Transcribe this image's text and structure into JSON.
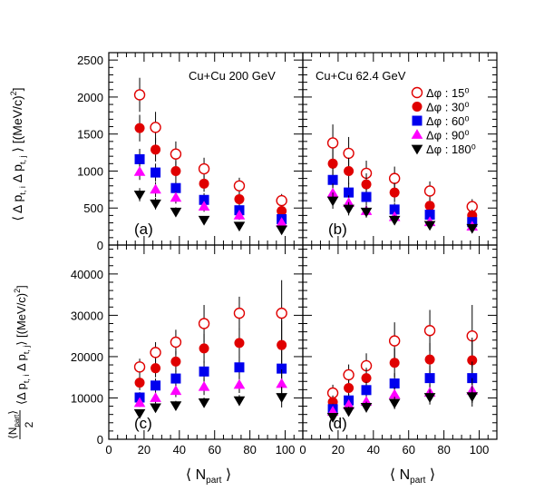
{
  "figure": {
    "ylabel_top": "⟨ Δ p_{t,i} Δ p_{t,j} ⟩ [(MeV/c)^{2}]",
    "ylabel_bottom": "⟨N_{part}⟩/2 ⟨Δ p_{t,i} Δ p_{t,j}⟩ [(MeV/c)^{2}]",
    "xlabel": "⟨ N_{part} ⟩"
  },
  "legend": {
    "placement": "panel (b), top-right",
    "entries": [
      {
        "label": "Δφ : 15⁰",
        "marker": "open-circle",
        "color": "#e00000"
      },
      {
        "label": "Δφ : 30⁰",
        "marker": "filled-circle",
        "color": "#e00000"
      },
      {
        "label": "Δφ : 60⁰",
        "marker": "square",
        "color": "#0000ee"
      },
      {
        "label": "Δφ : 90⁰",
        "marker": "triangle-up",
        "color": "#ff00ff"
      },
      {
        "label": "Δφ : 180⁰",
        "marker": "triangle-down",
        "color": "#000000"
      }
    ]
  },
  "chart_data": [
    {
      "type": "scatter",
      "panel": "(a)",
      "annotation": "Cu+Cu 200 GeV",
      "xlim": [
        0,
        110
      ],
      "ylim": [
        0,
        2600
      ],
      "xticks": [],
      "yticks": [
        0,
        500,
        1000,
        1500,
        2000,
        2500
      ],
      "ylabel": "⟨ Δ p_{t,i} Δ p_{t,j} ⟩ [(MeV/c)^{2}]",
      "grid": false,
      "series": [
        {
          "name": "Δφ : 15⁰",
          "x": [
            17.5,
            26.5,
            38,
            54,
            74,
            98
          ],
          "y": [
            2030,
            1590,
            1230,
            1030,
            800,
            600
          ],
          "err": [
            230,
            210,
            170,
            150,
            110,
            90
          ]
        },
        {
          "name": "Δφ : 30⁰",
          "x": [
            17.5,
            26.5,
            38,
            54,
            74,
            98
          ],
          "y": [
            1580,
            1290,
            1000,
            830,
            620,
            460
          ],
          "err": [
            180,
            160,
            130,
            110,
            90,
            70
          ]
        },
        {
          "name": "Δφ : 60⁰",
          "x": [
            17.5,
            26.5,
            38,
            54,
            74,
            98
          ],
          "y": [
            1160,
            980,
            770,
            610,
            470,
            350
          ],
          "err": [
            140,
            120,
            100,
            90,
            70,
            50
          ]
        },
        {
          "name": "Δφ : 90⁰",
          "x": [
            17.5,
            26.5,
            38,
            54,
            74,
            98
          ],
          "y": [
            990,
            750,
            640,
            520,
            400,
            300
          ],
          "err": [
            110,
            100,
            80,
            70,
            60,
            50
          ]
        },
        {
          "name": "Δφ : 180⁰",
          "x": [
            17.5,
            26.5,
            38,
            54,
            74,
            98
          ],
          "y": [
            680,
            560,
            450,
            340,
            260,
            210
          ],
          "err": [
            90,
            80,
            60,
            50,
            40,
            40
          ]
        }
      ]
    },
    {
      "type": "scatter",
      "panel": "(b)",
      "annotation": "Cu+Cu 62.4 GeV",
      "xlim": [
        0,
        110
      ],
      "ylim": [
        0,
        2600
      ],
      "xticks": [],
      "yticks": [],
      "grid": false,
      "series": [
        {
          "name": "Δφ : 15⁰",
          "x": [
            17,
            26,
            36,
            52,
            72,
            96
          ],
          "y": [
            1380,
            1240,
            970,
            900,
            730,
            520
          ],
          "err": [
            250,
            220,
            170,
            160,
            130,
            100
          ]
        },
        {
          "name": "Δφ : 30⁰",
          "x": [
            17,
            26,
            36,
            52,
            72,
            96
          ],
          "y": [
            1100,
            1000,
            820,
            710,
            530,
            400
          ],
          "err": [
            200,
            180,
            150,
            130,
            100,
            80
          ]
        },
        {
          "name": "Δφ : 60⁰",
          "x": [
            17,
            26,
            36,
            52,
            72,
            96
          ],
          "y": [
            880,
            710,
            650,
            480,
            410,
            310
          ],
          "err": [
            160,
            130,
            110,
            90,
            70,
            60
          ]
        },
        {
          "name": "Δφ : 90⁰",
          "x": [
            17,
            26,
            36,
            52,
            72,
            96
          ],
          "y": [
            700,
            570,
            460,
            380,
            310,
            250
          ],
          "err": [
            130,
            100,
            80,
            70,
            60,
            50
          ]
        },
        {
          "name": "Δφ : 180⁰",
          "x": [
            17,
            26,
            36,
            52,
            72,
            96
          ],
          "y": [
            600,
            490,
            450,
            340,
            270,
            230
          ],
          "err": [
            110,
            90,
            80,
            60,
            50,
            40
          ]
        }
      ]
    },
    {
      "type": "scatter",
      "panel": "(c)",
      "xlim": [
        0,
        110
      ],
      "ylim": [
        0,
        47000
      ],
      "xticks": [
        0,
        20,
        40,
        60,
        80,
        100
      ],
      "yticks": [
        0,
        10000,
        20000,
        30000,
        40000
      ],
      "xlabel": "⟨ N_{part} ⟩",
      "ylabel": "⟨N_{part}⟩/2 ⟨Δ p_{t,i} Δ p_{t,j}⟩ [(MeV/c)^{2}]",
      "grid": false,
      "series": [
        {
          "name": "Δφ : 15⁰",
          "x": [
            17.5,
            26.5,
            38,
            54,
            74,
            98
          ],
          "y": [
            17500,
            21000,
            23500,
            28000,
            30500,
            30500
          ],
          "err": [
            2000,
            2500,
            3000,
            4500,
            4000,
            8000
          ]
        },
        {
          "name": "Δφ : 30⁰",
          "x": [
            17.5,
            26.5,
            38,
            54,
            74,
            98
          ],
          "y": [
            13700,
            17200,
            18800,
            22000,
            23300,
            22800
          ],
          "err": [
            1800,
            2200,
            2500,
            3500,
            3500,
            6000
          ]
        },
        {
          "name": "Δφ : 60⁰",
          "x": [
            17.5,
            26.5,
            38,
            54,
            74,
            98
          ],
          "y": [
            10100,
            13000,
            14700,
            16400,
            17400,
            17100
          ],
          "err": [
            1300,
            1700,
            2000,
            2500,
            2500,
            4500
          ]
        },
        {
          "name": "Δφ : 90⁰",
          "x": [
            17.5,
            26.5,
            38,
            54,
            74,
            98
          ],
          "y": [
            8800,
            10000,
            11700,
            12700,
            13200,
            13400
          ],
          "err": [
            1000,
            1300,
            1500,
            2000,
            2000,
            3500
          ]
        },
        {
          "name": "Δφ : 180⁰",
          "x": [
            17.5,
            26.5,
            38,
            54,
            74,
            98
          ],
          "y": [
            6300,
            7700,
            8200,
            8900,
            9400,
            10200
          ],
          "err": [
            900,
            1000,
            1100,
            1200,
            1300,
            2500
          ]
        }
      ]
    },
    {
      "type": "scatter",
      "panel": "(d)",
      "xlim": [
        0,
        110
      ],
      "ylim": [
        0,
        47000
      ],
      "xticks": [
        0,
        20,
        40,
        60,
        80,
        100
      ],
      "yticks": [],
      "xlabel": "⟨ N_{part} ⟩",
      "grid": false,
      "series": [
        {
          "name": "Δφ : 15⁰",
          "x": [
            17,
            26,
            36,
            52,
            72,
            96
          ],
          "y": [
            11200,
            15600,
            17800,
            23800,
            26300,
            25000
          ],
          "err": [
            2000,
            2500,
            3000,
            4500,
            5000,
            7500
          ]
        },
        {
          "name": "Δφ : 30⁰",
          "x": [
            17,
            26,
            36,
            52,
            72,
            96
          ],
          "y": [
            9000,
            12400,
            14800,
            18500,
            19300,
            19100
          ],
          "err": [
            1600,
            2000,
            2500,
            3500,
            4000,
            5500
          ]
        },
        {
          "name": "Δφ : 60⁰",
          "x": [
            17,
            26,
            36,
            52,
            72,
            96
          ],
          "y": [
            7300,
            9400,
            11900,
            13500,
            14800,
            14800
          ],
          "err": [
            1300,
            1600,
            2000,
            2500,
            3000,
            4000
          ]
        },
        {
          "name": "Δφ : 90⁰",
          "x": [
            17,
            26,
            36,
            52,
            72,
            96
          ],
          "y": [
            6700,
            8300,
            9100,
            10800,
            11300,
            11800
          ],
          "err": [
            1100,
            1300,
            1500,
            1800,
            2000,
            3000
          ]
        },
        {
          "name": "Δφ : 180⁰",
          "x": [
            17,
            26,
            36,
            52,
            72,
            96
          ],
          "y": [
            5400,
            6800,
            7800,
            8800,
            10200,
            10400
          ],
          "err": [
            900,
            1100,
            1300,
            1500,
            1800,
            2500
          ]
        }
      ]
    }
  ]
}
